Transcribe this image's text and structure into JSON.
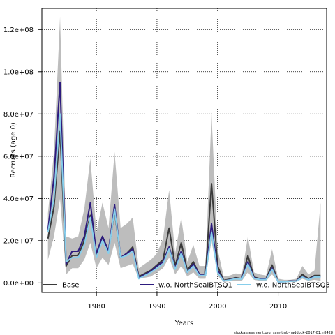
{
  "chart_data": {
    "type": "line",
    "xlabel": "Years",
    "ylabel": "Recruits (age 0)",
    "xlim": [
      1971,
      2018
    ],
    "ylim": [
      -4500000,
      130000000
    ],
    "x_ticks": [
      1980,
      1990,
      2000,
      2010
    ],
    "x_tick_labels": [
      "1980",
      "1990",
      "2000",
      "2010"
    ],
    "y_ticks": [
      0,
      20000000,
      40000000,
      60000000,
      80000000,
      100000000,
      120000000
    ],
    "y_tick_labels": [
      "0.0e+00",
      "2.0e+07",
      "4.0e+07",
      "6.0e+07",
      "8.0e+07",
      "1.0e+08",
      "1.2e+08"
    ],
    "grid": true,
    "legend_position": "bottom",
    "x": [
      1972,
      1973,
      1974,
      1975,
      1976,
      1977,
      1978,
      1979,
      1980,
      1981,
      1982,
      1983,
      1984,
      1985,
      1986,
      1987,
      1988,
      1989,
      1990,
      1991,
      1992,
      1993,
      1994,
      1995,
      1996,
      1997,
      1998,
      1999,
      2000,
      2001,
      2002,
      2003,
      2004,
      2005,
      2006,
      2007,
      2008,
      2009,
      2010,
      2011,
      2012,
      2013,
      2014,
      2015,
      2016,
      2017
    ],
    "band": {
      "series": "Base",
      "upper": [
        33000000,
        62000000,
        126000000,
        22000000,
        21000000,
        22000000,
        35000000,
        59000000,
        24000000,
        38000000,
        26000000,
        62000000,
        26000000,
        28000000,
        31000000,
        7000000,
        9000000,
        11000000,
        14000000,
        21000000,
        44000000,
        14000000,
        31000000,
        10000000,
        18000000,
        8000000,
        8000000,
        80000000,
        16000000,
        3000000,
        3500000,
        4500000,
        4000000,
        22000000,
        5000000,
        4000000,
        3500000,
        16000000,
        2000000,
        1500000,
        1500000,
        2000000,
        8000000,
        4000000,
        6000000,
        38000000
      ],
      "lower": [
        11000000,
        22000000,
        40000000,
        4000000,
        7000000,
        7000000,
        11000000,
        19000000,
        7000000,
        12000000,
        8500000,
        19000000,
        7000000,
        8000000,
        9000000,
        2000000,
        2500000,
        3000000,
        5000000,
        7000000,
        12000000,
        4000000,
        8000000,
        3000000,
        5000000,
        2000000,
        2000000,
        20000000,
        3500000,
        500000,
        800000,
        1000000,
        1000000,
        5000000,
        1500000,
        1000000,
        1000000,
        4000000,
        300000,
        300000,
        400000,
        500000,
        2000000,
        1000000,
        1500000,
        1000000
      ]
    },
    "series": [
      {
        "name": "Base",
        "color": "#3a3a3a",
        "values": [
          21000000,
          36000000,
          72000000,
          8000000,
          13000000,
          13000000,
          20000000,
          32000000,
          13000000,
          22000000,
          15000000,
          34000000,
          12000000,
          14000000,
          17000000,
          3000000,
          4500000,
          6000000,
          8500000,
          11000000,
          26000000,
          8000000,
          19000000,
          6000000,
          10000000,
          4000000,
          4000000,
          47000000,
          8000000,
          1200000,
          1800000,
          2500000,
          2000000,
          13000000,
          2800000,
          2000000,
          2000000,
          8500000,
          600000,
          700000,
          900000,
          1000000,
          4000000,
          2000000,
          3500000,
          3500000
        ]
      },
      {
        "name": "w.o. NorthSeaIBTSQ1",
        "color": "#2d1b7e",
        "values": [
          25000000,
          50000000,
          95000000,
          9000000,
          15000000,
          15000000,
          22000000,
          38000000,
          14000000,
          22000000,
          15000000,
          37000000,
          12000000,
          14000000,
          16000000,
          2500000,
          4000000,
          5500000,
          8000000,
          10000000,
          17000000,
          7000000,
          15000000,
          5000000,
          9000000,
          4000000,
          3500000,
          28000000,
          6000000,
          1000000,
          1500000,
          2200000,
          2000000,
          10000000,
          2500000,
          1800000,
          1800000,
          7000000,
          500000,
          600000,
          900000,
          1000000,
          3000000,
          1700000,
          3000000,
          3000000
        ]
      },
      {
        "name": "w.o. NorthSeaIBTSQ3",
        "color": "#87ceeb",
        "values": [
          24000000,
          40000000,
          80000000,
          10000000,
          12000000,
          12000000,
          18000000,
          31000000,
          12000000,
          20000000,
          14000000,
          35000000,
          12000000,
          13000000,
          15000000,
          2000000,
          3500000,
          5000000,
          7000000,
          9000000,
          16000000,
          6500000,
          14000000,
          5000000,
          8000000,
          3500000,
          3500000,
          24000000,
          5000000,
          1000000,
          1400000,
          2000000,
          1800000,
          9000000,
          2200000,
          1600000,
          1600000,
          6500000,
          500000,
          600000,
          800000,
          900000,
          2800000,
          1500000,
          2800000,
          2800000
        ]
      }
    ]
  },
  "credit": "stockassessment.org, sam-tmb-haddock-2017-01, r8428"
}
